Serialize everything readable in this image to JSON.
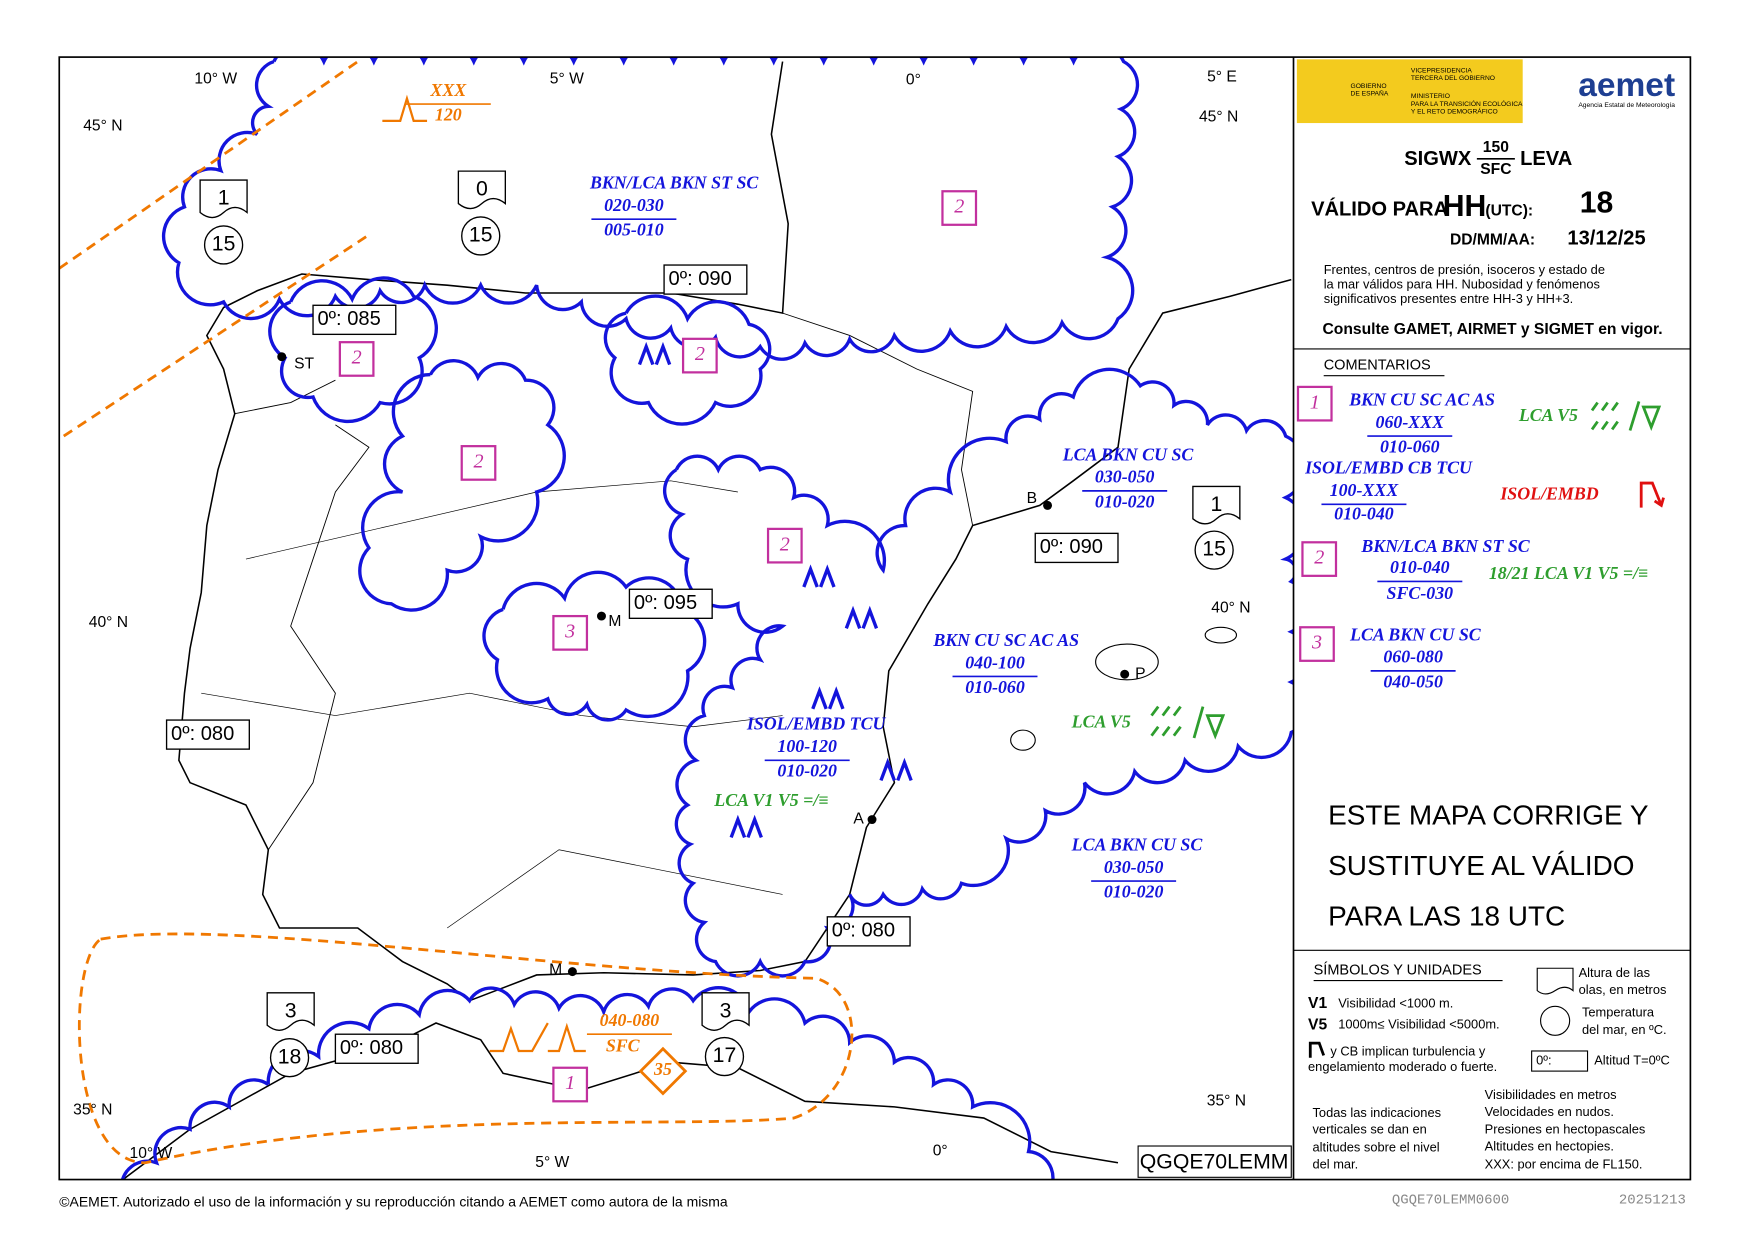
{
  "header": {
    "gov": [
      "GOBIERNO",
      "DE ESPAÑA"
    ],
    "ministry": [
      "VICEPRESIDENCIA",
      "TERCERA DEL GOBIERNO",
      "MINISTERIO",
      "PARA LA TRANSICIÓN ECOLÓGICA",
      "Y EL RETO DEMOGRÁFICO"
    ],
    "brand": "aemet",
    "brand_sub": "Agencia Estatal de Meteorología"
  },
  "title": {
    "product": "SIGWX",
    "upper": "150",
    "lower": "SFC",
    "region": "LEVA",
    "valid_label": "VÁLIDO PARA",
    "hh": "HH",
    "utc": "(UTC):",
    "hour": "18",
    "date_label": "DD/MM/AA:",
    "date": "13/12/25",
    "description": [
      "Frentes, centros de presión, isoceros y estado de",
      "la mar válidos para HH. Nubosidad y fenómenos",
      "significativos presentes entre HH-3 y HH+3."
    ],
    "consult": "Consulte GAMET, AIRMET y SIGMET en vigor."
  },
  "comments": {
    "title": "COMENTARIOS",
    "items": [
      {
        "number": "1",
        "layers": [
          {
            "text": "BKN CU SC AC AS",
            "top": "060-XXX",
            "base": "010-060"
          },
          {
            "text": "ISOL/EMBD CB TCU",
            "top": "100-XXX",
            "base": "010-040"
          }
        ],
        "notes": [
          "LCA V5",
          "ISOL/EMBD"
        ]
      },
      {
        "number": "2",
        "layers": [
          {
            "text": "BKN/LCA BKN ST SC",
            "top": "010-040",
            "base": "SFC-030"
          }
        ],
        "notes": [
          "18/21 LCA  V1 V5 =/≡"
        ]
      },
      {
        "number": "3",
        "layers": [
          {
            "text": "LCA BKN CU SC",
            "top": "060-080",
            "base": "040-050"
          }
        ]
      }
    ]
  },
  "notice": [
    "ESTE MAPA CORRIGE Y",
    "SUSTITUYE AL VÁLIDO",
    "PARA LAS 18 UTC"
  ],
  "symbols": {
    "title": "SÍMBOLOS Y UNIDADES",
    "waves": [
      "Altura de las",
      "olas, en metros"
    ],
    "v1": "V1",
    "v1_text": "Visibilidad <1000 m.",
    "v5": "V5",
    "v5_text": "1000m≤ Visibilidad <5000m.",
    "sea_temp": [
      "Temperatura",
      "del mar, en ºC."
    ],
    "turbulence": [
      "y CB implican turbulencia y",
      "engelamiento moderado o fuerte."
    ],
    "freezing_box": "0º:",
    "freezing_text": "Altitud T=0ºC",
    "vertical": [
      "Todas las indicaciones",
      "verticales se dan en",
      "altitudes sobre el nivel",
      "del mar."
    ],
    "units": [
      "Visibilidades en metros",
      "Velocidades en nudos.",
      "Presiones en hectopascales",
      "Altitudes en hectopies.",
      "XXX: por encima de FL150."
    ]
  },
  "map": {
    "coords": [
      "10° W",
      "5° W",
      "0°",
      "5° E",
      "45° N",
      "45° N",
      "40° N",
      "40° N",
      "35° N",
      "35° N",
      "10° W",
      "5° W",
      "0°"
    ],
    "freezing_levels": [
      "0º: 085",
      "0º: 090",
      "0º: 090",
      "0º: 095",
      "0º: 080",
      "0º: 080",
      "0º: 080"
    ],
    "clouds": [
      {
        "type": "BKN/LCA BKN ST SC",
        "top": "020-030",
        "base": "005-010"
      },
      {
        "type": "LCA BKN CU SC",
        "top": "030-050",
        "base": "010-020"
      },
      {
        "type": "BKN CU SC AC AS",
        "top": "040-100",
        "base": "010-060"
      },
      {
        "type": "ISOL/EMBD TCU",
        "top": "100-120",
        "base": "010-020"
      },
      {
        "type": "LCA BKN CU SC",
        "top": "030-050",
        "base": "010-020"
      }
    ],
    "areas": [
      "2",
      "2",
      "2",
      "2",
      "2",
      "3",
      "1"
    ],
    "wave_heights": [
      "1",
      "0",
      "1",
      "3",
      "3"
    ],
    "sea_temps": [
      "15",
      "15",
      "15",
      "18",
      "17"
    ],
    "cities": [
      "ST",
      "B",
      "M",
      "P",
      "A",
      "M"
    ],
    "turbulence": {
      "top": "XXX",
      "base": "120"
    },
    "sfc_layer": {
      "top": "040-080",
      "base": "SFC"
    },
    "warning": "35",
    "visibility": [
      "LCA   V1 V5 =/≡",
      "LCA  V5"
    ],
    "map_code": "QGQE70LEMM"
  },
  "footer": {
    "copyright": "©AEMET. Autorizado el uso de la información y su reproducción citando a AEMET como autora de la misma",
    "product_code": "QGQE70LEMM0600",
    "date": "20251213"
  }
}
